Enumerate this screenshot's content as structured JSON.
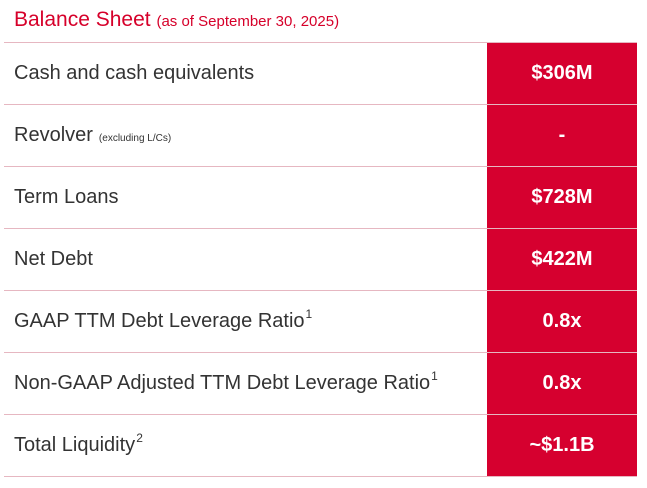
{
  "header": {
    "title": "Balance Sheet",
    "subtitle": "(as of September 30, 2025)"
  },
  "table": {
    "rows": [
      {
        "label": "Cash and cash equivalents",
        "value": "$306M"
      },
      {
        "label": "Revolver",
        "note": "(excluding L/Cs)",
        "value": "-"
      },
      {
        "label": "Term Loans",
        "value": "$728M"
      },
      {
        "label": "Net Debt",
        "value": "$422M"
      },
      {
        "label": "GAAP TTM Debt Leverage Ratio",
        "footnote": "1",
        "value": "0.8x"
      },
      {
        "label": "Non-GAAP Adjusted TTM Debt Leverage Ratio",
        "footnote": "1",
        "value": "0.8x"
      },
      {
        "label": "Total Liquidity",
        "footnote": "2",
        "value": "~$1.1B"
      }
    ]
  }
}
